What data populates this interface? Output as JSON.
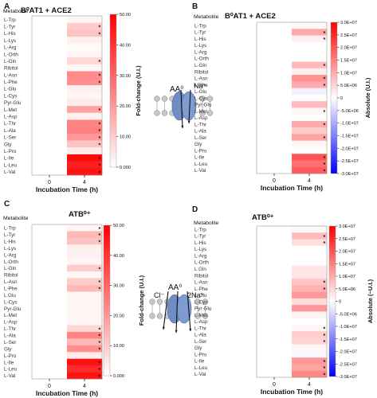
{
  "chart_data": [
    {
      "type": "heatmap",
      "panel": "A",
      "title": "B⁰AT1 + ACE2",
      "row_header": "Metabolite",
      "xlabel": "Incubation Time (h)",
      "x": [
        "0",
        "4"
      ],
      "rows": [
        "L-Trp",
        "L-Tyr",
        "L-His",
        "L-Lys",
        "L-Arg",
        "L-Orth",
        "L-Gln",
        "Ribitol",
        "L-Asn",
        "L-Phe",
        "L-Glu",
        "L-Cys",
        "Pyr-Glu",
        "L-Met",
        "L-Asp",
        "L-Thr",
        "L-Ala",
        "L-Ser",
        "Gly",
        "L-Pro",
        "L-Ile",
        "L-Leu",
        "L-Val"
      ],
      "values": [
        [
          0,
          2
        ],
        [
          0,
          10
        ],
        [
          0,
          12
        ],
        [
          0,
          3
        ],
        [
          0,
          1
        ],
        [
          0,
          2
        ],
        [
          0,
          8
        ],
        [
          0,
          2
        ],
        [
          0,
          23
        ],
        [
          0,
          22
        ],
        [
          0,
          3
        ],
        [
          0,
          2
        ],
        [
          0,
          4
        ],
        [
          0,
          18
        ],
        [
          0,
          3
        ],
        [
          0,
          24
        ],
        [
          0,
          25
        ],
        [
          0,
          20
        ],
        [
          0,
          12
        ],
        [
          0,
          4
        ],
        [
          0,
          48
        ],
        [
          0,
          44
        ],
        [
          0,
          46
        ]
      ],
      "significant": [
        [
          false,
          false
        ],
        [
          false,
          true
        ],
        [
          false,
          true
        ],
        [
          false,
          false
        ],
        [
          false,
          false
        ],
        [
          false,
          false
        ],
        [
          false,
          true
        ],
        [
          false,
          false
        ],
        [
          false,
          true
        ],
        [
          false,
          true
        ],
        [
          false,
          false
        ],
        [
          false,
          false
        ],
        [
          false,
          false
        ],
        [
          false,
          true
        ],
        [
          false,
          false
        ],
        [
          false,
          true
        ],
        [
          false,
          true
        ],
        [
          false,
          true
        ],
        [
          false,
          true
        ],
        [
          false,
          false
        ],
        [
          false,
          true
        ],
        [
          false,
          true
        ],
        [
          false,
          true
        ]
      ],
      "colorbar": {
        "label": "Fold-change (U.I.)",
        "min": 0,
        "max": 50,
        "ticks": [
          "0.000",
          "10.00",
          "20.00",
          "30.00",
          "40.00",
          "50.00"
        ],
        "tick_values": [
          0,
          10,
          20,
          30,
          40,
          50
        ],
        "colors": [
          "#ffffff",
          "#ff0000"
        ]
      },
      "annotation": {
        "left": "AA⁰",
        "right": "Na⁺"
      }
    },
    {
      "type": "heatmap",
      "panel": "B",
      "title": "B⁰AT1 + ACE2",
      "row_header": "Metabolite",
      "xlabel": "Incubation Time (h)",
      "x": [
        "0",
        "4"
      ],
      "rows": [
        "L-Trp",
        "L-Tyr",
        "L-His",
        "L-Lys",
        "L-Arg",
        "L-Orth",
        "L-Gln",
        "Ribitol",
        "L-Asn",
        "L-Phe",
        "L-Glu",
        "L-Cys",
        "Pyr-Glu",
        "L-Met",
        "L-Asp",
        "L-Thr",
        "L-Ala",
        "L-Ser",
        "Gly",
        "L-Pro",
        "L-Ile",
        "L-Leu",
        "L-Val"
      ],
      "values": [
        [
          0,
          1000000.0
        ],
        [
          0,
          10000000.0
        ],
        [
          0,
          2000000.0
        ],
        [
          0,
          0
        ],
        [
          0,
          0
        ],
        [
          0,
          0
        ],
        [
          0,
          8000000.0
        ],
        [
          0,
          2000000.0
        ],
        [
          0,
          13000000.0
        ],
        [
          0,
          10000000.0
        ],
        [
          0,
          -1500000.0
        ],
        [
          0,
          0
        ],
        [
          0,
          8000000.0
        ],
        [
          0,
          1000000.0
        ],
        [
          0,
          0
        ],
        [
          0,
          10000000.0
        ],
        [
          0,
          6000000.0
        ],
        [
          0,
          11000000.0
        ],
        [
          0,
          1000000.0
        ],
        [
          0,
          0
        ],
        [
          0,
          20000000.0
        ],
        [
          0,
          17000000.0
        ],
        [
          0,
          19000000.0
        ]
      ],
      "significant": [
        [
          false,
          false
        ],
        [
          false,
          true
        ],
        [
          false,
          true
        ],
        [
          false,
          false
        ],
        [
          false,
          false
        ],
        [
          false,
          false
        ],
        [
          false,
          true
        ],
        [
          false,
          false
        ],
        [
          false,
          true
        ],
        [
          false,
          true
        ],
        [
          false,
          false
        ],
        [
          false,
          false
        ],
        [
          false,
          false
        ],
        [
          false,
          true
        ],
        [
          false,
          false
        ],
        [
          false,
          true
        ],
        [
          false,
          false
        ],
        [
          false,
          true
        ],
        [
          false,
          false
        ],
        [
          false,
          false
        ],
        [
          false,
          true
        ],
        [
          false,
          true
        ],
        [
          false,
          true
        ]
      ],
      "colorbar": {
        "label": "Absolute (U.I.)",
        "min": -30000000.0,
        "max": 30000000.0,
        "ticks": [
          "3.0E+07",
          "2.5E+07",
          "2.0E+07",
          "1.5E+07",
          "1.0E+07",
          "5.0E+06",
          "0",
          "-5.0E+06",
          "-1.0E+07",
          "-1.5E+07",
          "-2.0E+07",
          "-2.5E+07",
          "-3.0E+07"
        ],
        "tick_values": [
          30000000.0,
          25000000.0,
          20000000.0,
          15000000.0,
          10000000.0,
          5000000.0,
          0,
          -5000000.0,
          -10000000.0,
          -15000000.0,
          -20000000.0,
          -25000000.0,
          -30000000.0
        ],
        "colors": [
          "#0000ff",
          "#ffffff",
          "#ff0000"
        ]
      }
    },
    {
      "type": "heatmap",
      "panel": "C",
      "title": "ATB⁰⁺",
      "row_header": "Metabolite",
      "xlabel": "Incubation Time (h)",
      "x": [
        "0",
        "4"
      ],
      "rows": [
        "L-Trp",
        "L-Tyr",
        "L-His",
        "L-Lys",
        "L-Arg",
        "L-Orth",
        "L-Gln",
        "Ribitol",
        "L-Asn",
        "L-Phe",
        "L Glu",
        "L-Cys",
        "Pyr-Glu",
        "L-Met",
        "L-Asp",
        "L-Thr",
        "L-Ala",
        "L-Ser",
        "Gly",
        "L-Pro",
        "L-Ile",
        "L-Leu",
        "L-Val"
      ],
      "values": [
        [
          0,
          2
        ],
        [
          0,
          14
        ],
        [
          0,
          12
        ],
        [
          0,
          3
        ],
        [
          0,
          3
        ],
        [
          0,
          2
        ],
        [
          0,
          10
        ],
        [
          0,
          2
        ],
        [
          0,
          10
        ],
        [
          0,
          14
        ],
        [
          0,
          2
        ],
        [
          0,
          2
        ],
        [
          0,
          2
        ],
        [
          0,
          2
        ],
        [
          0,
          2
        ],
        [
          0,
          8
        ],
        [
          0,
          24
        ],
        [
          0,
          14
        ],
        [
          0,
          22
        ],
        [
          0,
          4
        ],
        [
          0,
          47
        ],
        [
          0,
          42
        ],
        [
          0,
          46
        ]
      ],
      "significant": [
        [
          false,
          true
        ],
        [
          false,
          true
        ],
        [
          false,
          true
        ],
        [
          false,
          false
        ],
        [
          false,
          false
        ],
        [
          false,
          false
        ],
        [
          false,
          true
        ],
        [
          false,
          false
        ],
        [
          false,
          true
        ],
        [
          false,
          true
        ],
        [
          false,
          false
        ],
        [
          false,
          false
        ],
        [
          false,
          false
        ],
        [
          false,
          false
        ],
        [
          false,
          false
        ],
        [
          false,
          true
        ],
        [
          false,
          true
        ],
        [
          false,
          true
        ],
        [
          false,
          true
        ],
        [
          false,
          false
        ],
        [
          false,
          true
        ],
        [
          false,
          true
        ],
        [
          false,
          true
        ]
      ],
      "colorbar": {
        "label": "Fold-change (U.I.)",
        "min": 0,
        "max": 50,
        "ticks": [
          "0.000",
          "10.00",
          "20.00",
          "30.00",
          "40.00",
          "50.00"
        ],
        "tick_values": [
          0,
          10,
          20,
          30,
          40,
          50
        ],
        "colors": [
          "#ffffff",
          "#ff0000"
        ]
      },
      "annotation": {
        "left": "Cl⁻",
        "middle": "AA⁰",
        "right": "2Na⁺"
      }
    },
    {
      "type": "heatmap",
      "panel": "D",
      "title": "ATB⁰⁺",
      "row_header": "Metabolite",
      "xlabel": "Incubation Time (h)",
      "x": [
        "0",
        "4"
      ],
      "rows": [
        "L-Trp",
        "L-Tyr",
        "L-His",
        "L-Lys",
        "L-Arg",
        "L-Orth",
        "L Gln",
        "Ribitol",
        "L-Asn",
        "L-Phe",
        "L-Glu",
        "L-Cys",
        "Pyr-Glu",
        "L-Met",
        "L-Asp",
        "L-Thr",
        "L-Ala",
        "L-Ser",
        "Gly",
        "L-Pro",
        "L-Ile",
        "L-Leu",
        "L-Val"
      ],
      "values": [
        [
          0,
          1000000.0
        ],
        [
          0,
          8000000.0
        ],
        [
          0,
          4000000.0
        ],
        [
          0,
          0
        ],
        [
          0,
          0
        ],
        [
          0,
          0
        ],
        [
          0,
          3000000.0
        ],
        [
          0,
          3000000.0
        ],
        [
          0,
          7000000.0
        ],
        [
          0,
          9000000.0
        ],
        [
          0,
          12000000.0
        ],
        [
          0,
          4000000.0
        ],
        [
          0,
          12000000.0
        ],
        [
          0,
          1500000.0
        ],
        [
          0,
          0
        ],
        [
          0,
          1000000.0
        ],
        [
          0,
          6000000.0
        ],
        [
          0,
          5000000.0
        ],
        [
          0,
          1000000.0
        ],
        [
          0,
          -1000000.0
        ],
        [
          0,
          12000000.0
        ],
        [
          0,
          11000000.0
        ],
        [
          0,
          14000000.0
        ]
      ],
      "significant": [
        [
          false,
          false
        ],
        [
          false,
          true
        ],
        [
          false,
          true
        ],
        [
          false,
          false
        ],
        [
          false,
          false
        ],
        [
          false,
          false
        ],
        [
          false,
          false
        ],
        [
          false,
          false
        ],
        [
          false,
          true
        ],
        [
          false,
          true
        ],
        [
          false,
          false
        ],
        [
          false,
          false
        ],
        [
          false,
          false
        ],
        [
          false,
          false
        ],
        [
          false,
          false
        ],
        [
          false,
          true
        ],
        [
          false,
          true
        ],
        [
          false,
          true
        ],
        [
          false,
          false
        ],
        [
          false,
          false
        ],
        [
          false,
          true
        ],
        [
          false,
          true
        ],
        [
          false,
          true
        ]
      ],
      "colorbar": {
        "label": "Absolute (~U.I.)",
        "min": -30000000.0,
        "max": 30000000.0,
        "ticks": [
          "3.0E+07",
          "2.5E+07",
          "2.0E+07",
          "1.5E+07",
          "1.0E+07",
          "5.0E+06",
          "0",
          "-5.0E+06",
          "-1.0E+07",
          "-1.5E+07",
          "-2.0E+07",
          "-2.5E+07",
          "-3.0E+07"
        ],
        "tick_values": [
          30000000.0,
          25000000.0,
          20000000.0,
          15000000.0,
          10000000.0,
          5000000.0,
          0,
          -5000000.0,
          -10000000.0,
          -15000000.0,
          -20000000.0,
          -25000000.0,
          -30000000.0
        ],
        "colors": [
          "#0000ff",
          "#ffffff",
          "#ff0000"
        ]
      }
    }
  ]
}
